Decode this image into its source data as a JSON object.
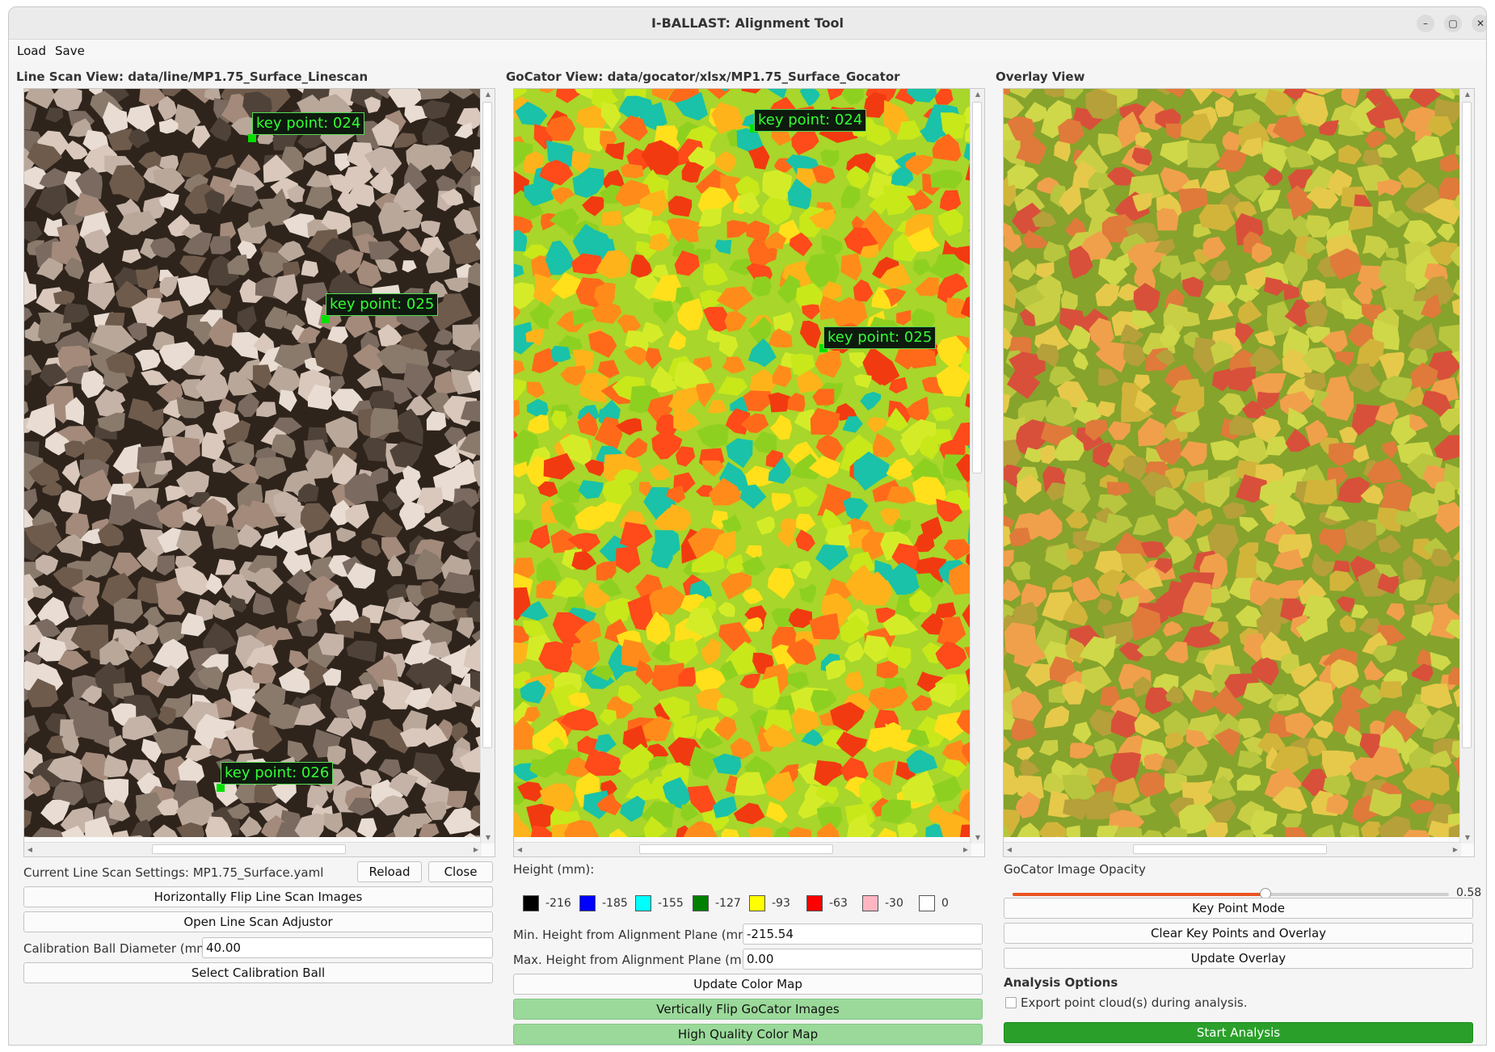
{
  "window": {
    "title": "I-BALLAST: Alignment Tool",
    "controls": [
      "minimize-icon",
      "maximize-icon",
      "close-icon"
    ]
  },
  "menu": {
    "load": "Load",
    "save": "Save"
  },
  "linescan": {
    "title": "Line Scan View: data/line/MP1.75_Surface_Linescan",
    "keypoints": [
      "key point: 024",
      "key point: 025",
      "key point: 026"
    ],
    "settings_label": "Current Line Scan Settings: MP1.75_Surface.yaml",
    "reload": "Reload",
    "close": "Close",
    "flip": "Horizontally Flip Line Scan Images",
    "adjustor": "Open Line Scan Adjustor",
    "ball_label": "Calibration Ball Diameter (mm):",
    "ball_value": "40.00",
    "select_ball": "Select Calibration Ball"
  },
  "gocator": {
    "title": "GoCator View: data/gocator/xlsx/MP1.75_Surface_Gocator",
    "keypoints": [
      "key point: 024",
      "key point: 025"
    ],
    "height_label": "Height (mm):",
    "legend": [
      {
        "value": "-216",
        "color": "#000000"
      },
      {
        "value": "-185",
        "color": "#0000ff"
      },
      {
        "value": "-155",
        "color": "#00ffff"
      },
      {
        "value": "-127",
        "color": "#008000"
      },
      {
        "value": "-93",
        "color": "#ffff00"
      },
      {
        "value": "-63",
        "color": "#ff0000"
      },
      {
        "value": "-30",
        "color": "#ffb6c1"
      },
      {
        "value": "0",
        "color": "#ffffff"
      }
    ],
    "min_label": "Min. Height from Alignment Plane (mm):",
    "min_value": "-215.54",
    "max_label": "Max. Height from Alignment Plane (mm):",
    "max_value": "0.00",
    "update_color_map": "Update Color Map",
    "vflip": "Vertically Flip GoCator Images",
    "hq": "High Quality Color Map"
  },
  "overlay": {
    "title": "Overlay View",
    "opacity_label": "GoCator Image Opacity",
    "opacity_value": "0.58",
    "opacity": 0.58,
    "key_point_mode": "Key Point Mode",
    "clear": "Clear Key Points and Overlay",
    "update": "Update Overlay",
    "analysis_header": "Analysis Options",
    "export_label": "Export point cloud(s) during analysis.",
    "start": "Start Analysis"
  }
}
